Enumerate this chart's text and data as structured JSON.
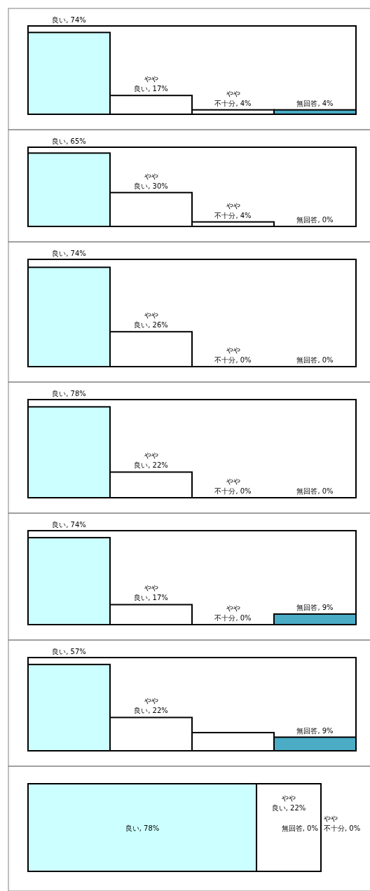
{
  "chart_data": [
    {
      "type": "bar",
      "categories": [
        null,
        null,
        null,
        null
      ],
      "values": [
        74,
        17,
        4,
        4
      ],
      "colors": [
        "#ccffff",
        "#ffffff",
        "#ffffff",
        "#4bacc6"
      ],
      "value_labels": [
        "良い, 74%",
        "やや良い, 17%",
        "やや不十分, 4%",
        "無回答, 4%"
      ]
    },
    {
      "type": "bar",
      "categories": [
        null,
        null,
        null,
        null
      ],
      "values": [
        65,
        30,
        4,
        0
      ],
      "colors": [
        "#ccffff",
        "#ffffff",
        "#ffffff",
        "#4bacc6"
      ],
      "value_labels": [
        "良い, 65%",
        "やや良い, 30%",
        "やや不十分, 4%",
        "無回答, 0%"
      ]
    },
    {
      "type": "bar",
      "categories": [
        null,
        null,
        null,
        null
      ],
      "values": [
        74,
        26,
        0,
        0
      ],
      "colors": [
        "#ccffff",
        "#ffffff",
        "#ffffff",
        "#4bacc6"
      ],
      "value_labels": [
        "良い, 74%",
        "やや良い, 26%",
        "やや不十分, 0%",
        "無回答, 0%"
      ]
    },
    {
      "type": "bar",
      "categories": [
        null,
        null,
        null,
        null
      ],
      "values": [
        78,
        22,
        0,
        0
      ],
      "colors": [
        "#ccffff",
        "#ffffff",
        "#ffffff",
        "#4bacc6"
      ],
      "value_labels": [
        "良い, 78%",
        "やや良い, 22%",
        "やや不十分, 0%",
        "無回答, 0%"
      ]
    },
    {
      "type": "bar",
      "categories": [
        null,
        null,
        null,
        null
      ],
      "values": [
        74,
        17,
        0,
        9
      ],
      "colors": [
        "#ccffff",
        "#ffffff",
        "#ffffff",
        "#4bacc6"
      ],
      "value_labels": [
        "良い, 74%",
        "やや良い, 17%",
        "やや不十分, 0%",
        "無回答, 9%"
      ]
    },
    {
      "type": "bar",
      "categories": [
        null,
        null,
        null,
        null
      ],
      "values": [
        57,
        22,
        12,
        9
      ],
      "colors": [
        "#ccffff",
        "#ffffff",
        "#ffffff",
        "#4bacc6"
      ],
      "value_labels": [
        "良い, 57%",
        "やや良い, 22%",
        null,
        "無回答, 9%"
      ]
    },
    {
      "type": "bar",
      "orientation": "horizontal",
      "stacked": true,
      "categories": [
        null
      ],
      "series": [
        {
          "color": "#ccffff",
          "values": [
            78
          ],
          "value_labels": [
            "良い, 78%"
          ]
        },
        {
          "color": "#ffffff",
          "values": [
            22
          ],
          "value_labels": [
            "やや良い, 22%"
          ]
        },
        {
          "color": "#ffffff",
          "values": [
            0
          ],
          "value_labels": [
            "やや不十分, 0%"
          ]
        },
        {
          "color": "#4bacc6",
          "values": [
            0
          ],
          "value_labels": [
            "無回答, 0%"
          ]
        }
      ]
    }
  ]
}
